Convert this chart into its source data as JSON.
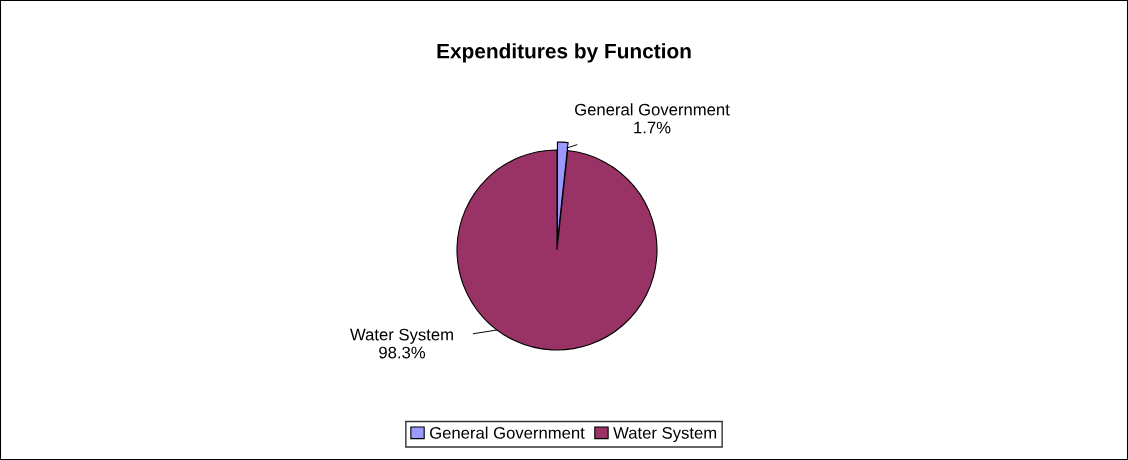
{
  "chart_data": {
    "type": "pie",
    "title": "Expenditures by Function",
    "categories": [
      "General Government",
      "Water System"
    ],
    "values": [
      1.7,
      98.3
    ],
    "value_labels": [
      "1.7%",
      "98.3%"
    ],
    "colors": [
      "#9999ff",
      "#993366"
    ],
    "legend": "bottom"
  }
}
